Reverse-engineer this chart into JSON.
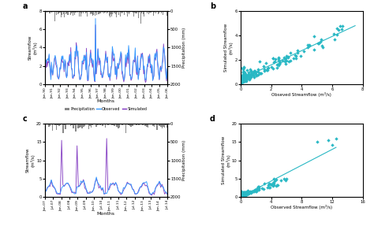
{
  "panel_a": {
    "label": "a",
    "x_ticks": [
      "Jan-90",
      "Jan-91",
      "Jan-92",
      "Jan-93",
      "Jan-94",
      "Jan-95",
      "Jan-96",
      "Jan-97",
      "Jan-98",
      "Jan-99",
      "Jan-00",
      "Jan-01",
      "Jan-02",
      "Jan-03",
      "Jan-04",
      "Jan-05",
      "Jan-06"
    ],
    "streamflow_ylim": [
      0,
      8
    ],
    "streamflow_yticks": [
      0,
      2,
      4,
      6,
      8
    ],
    "precip_ylim": [
      2000,
      0
    ],
    "precip_yticks": [
      0,
      500,
      1000,
      1500,
      2000
    ],
    "streamflow_ylabel": "Streamflow\n(m³/s)",
    "precip_ylabel": "Precipitation (mm)",
    "xlabel": "Months",
    "observed_color": "#3399FF",
    "simulated_color": "#7B2FBE",
    "precip_color": "#888888"
  },
  "panel_b": {
    "label": "b",
    "xlabel": "Obseved Streamflow (m³/s)",
    "ylabel": "Simulated Streamflow\n(m³/s)",
    "xlim": [
      0,
      8
    ],
    "ylim": [
      0,
      6
    ],
    "xticks": [
      0,
      2,
      4,
      6,
      8
    ],
    "yticks": [
      0,
      2,
      4,
      6
    ],
    "scatter_color": "#29B8C4",
    "line_color": "#29B8C4"
  },
  "panel_c": {
    "label": "c",
    "x_ticks": [
      "Jan-07",
      "Jul-07",
      "Jan-08",
      "Jul-08",
      "Jan-09",
      "Jul-09",
      "Jan-10",
      "Jul-10",
      "Jan-11",
      "Jul-11",
      "Jan-12",
      "Jul-12",
      "Jan-13",
      "Jul-13",
      "Jan-14",
      "Jul-14"
    ],
    "streamflow_ylim": [
      0,
      20
    ],
    "streamflow_yticks": [
      0,
      5,
      10,
      15,
      20
    ],
    "precip_ylim": [
      2000,
      0
    ],
    "precip_yticks": [
      0,
      500,
      1000,
      1500,
      2000
    ],
    "streamflow_ylabel": "Streamflow\n(m³/s)",
    "precip_ylabel": "Precipitation (mm)",
    "xlabel": "Months",
    "observed_color": "#3399FF",
    "simulated_color": "#7B2FBE",
    "precip_color": "#888888"
  },
  "panel_d": {
    "label": "d",
    "xlabel": "Observed Streamflow (m³/s)",
    "ylabel": "Simulated Streamflow\n(m³/s)",
    "xlim": [
      0,
      16
    ],
    "ylim": [
      0,
      20
    ],
    "xticks": [
      0,
      4,
      8,
      12,
      16
    ],
    "yticks": [
      0,
      5,
      10,
      15,
      20
    ],
    "scatter_color": "#29B8C4",
    "line_color": "#29B8C4"
  },
  "legend": {
    "precip_label": "Precipitation",
    "obs_label": "Observed",
    "sim_label": "Simulated"
  }
}
